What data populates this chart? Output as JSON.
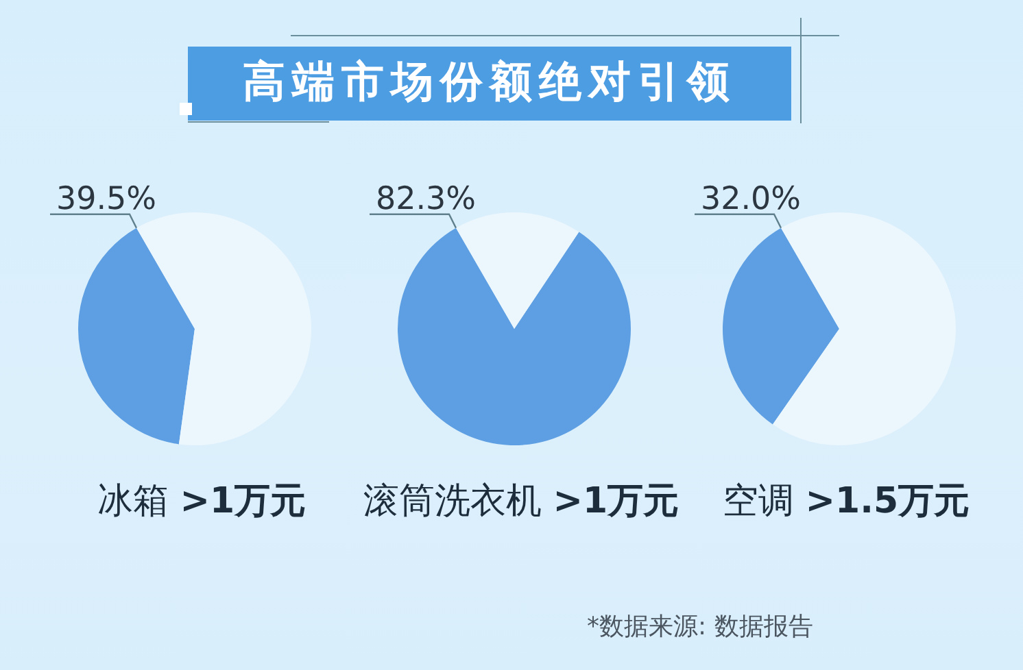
{
  "chart_data": [
    {
      "type": "pie",
      "title": "高端市场份额绝对引领",
      "xlabel": "冰箱 >1万元",
      "categories": [
        null,
        null
      ],
      "values": [
        39.5,
        60.5
      ],
      "colors": [
        "#5d9fe2",
        "#ecf6fd"
      ],
      "value_labels": [
        "39.5%",
        null
      ]
    },
    {
      "type": "pie",
      "xlabel": "滚筒洗衣机 >1万元",
      "categories": [
        null,
        null
      ],
      "values": [
        82.3,
        17.7
      ],
      "colors": [
        "#5d9fe2",
        "#ecf6fd"
      ],
      "value_labels": [
        "82.3%",
        null
      ]
    },
    {
      "type": "pie",
      "xlabel": "空调 >1.5万元",
      "categories": [
        null,
        null
      ],
      "values": [
        32.0,
        68.0
      ],
      "colors": [
        "#5d9fe2",
        "#ecf6fd"
      ],
      "value_labels": [
        "32.0%",
        null
      ],
      "annotations": [
        "*数据来源: 数据报告"
      ]
    }
  ]
}
